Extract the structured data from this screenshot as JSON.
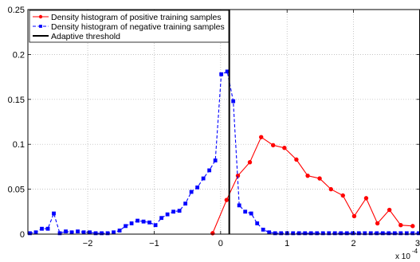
{
  "chart_data": {
    "type": "line",
    "title": "",
    "xlabel": "",
    "ylabel": "",
    "xlim": [
      -2.9,
      3.0
    ],
    "ylim": [
      0,
      0.25
    ],
    "x_multiplier_label": "x 10",
    "x_multiplier_exponent": "-4",
    "xticks": [
      -2,
      -1,
      0,
      1,
      2,
      3
    ],
    "xtick_labels": [
      "−2",
      "−1",
      "0",
      "1",
      "2",
      "3"
    ],
    "yticks": [
      0,
      0.05,
      0.1,
      0.15,
      0.2,
      0.25
    ],
    "ytick_labels": [
      "0",
      "0.05",
      "0.1",
      "0.15",
      "0.2",
      "0.25"
    ],
    "grid": true,
    "legend_position": "top-left",
    "threshold": {
      "name": "Adaptive threshold",
      "x": 0.13,
      "color": "#000000"
    },
    "series": [
      {
        "name": "Density histogram of positive training samples",
        "color": "#ff0000",
        "marker": "circle",
        "line": "solid",
        "x": [
          -0.12,
          0.09,
          0.26,
          0.44,
          0.61,
          0.79,
          0.96,
          1.14,
          1.31,
          1.49,
          1.66,
          1.84,
          2.01,
          2.19,
          2.36,
          2.54,
          2.71,
          2.89
        ],
        "values": [
          0.001,
          0.038,
          0.065,
          0.08,
          0.108,
          0.099,
          0.096,
          0.083,
          0.065,
          0.062,
          0.05,
          0.043,
          0.02,
          0.04,
          0.012,
          0.027,
          0.01,
          0.009
        ]
      },
      {
        "name": "Density histogram of negative training samples",
        "color": "#0000ff",
        "marker": "square",
        "line": "dashed",
        "x": [
          -2.87,
          -2.78,
          -2.69,
          -2.6,
          -2.51,
          -2.42,
          -2.33,
          -2.24,
          -2.15,
          -2.06,
          -1.97,
          -1.88,
          -1.79,
          -1.7,
          -1.61,
          -1.52,
          -1.43,
          -1.34,
          -1.25,
          -1.16,
          -1.07,
          -0.98,
          -0.89,
          -0.8,
          -0.71,
          -0.62,
          -0.53,
          -0.44,
          -0.35,
          -0.26,
          -0.17,
          -0.08,
          0.01,
          0.1,
          0.19,
          0.28,
          0.37,
          0.46,
          0.55,
          0.64,
          0.73,
          0.82,
          0.91,
          1.0,
          1.09,
          1.18,
          1.27,
          1.36,
          1.45,
          1.54,
          1.63,
          1.72,
          1.81,
          1.9,
          1.99,
          2.08,
          2.17,
          2.26,
          2.35,
          2.44,
          2.53,
          2.62,
          2.71,
          2.8,
          2.89,
          2.98
        ],
        "values": [
          0.001,
          0.002,
          0.006,
          0.006,
          0.023,
          0.001,
          0.003,
          0.002,
          0.003,
          0.002,
          0.002,
          0.001,
          0.001,
          0.001,
          0.002,
          0.004,
          0.009,
          0.012,
          0.015,
          0.014,
          0.013,
          0.01,
          0.018,
          0.022,
          0.025,
          0.026,
          0.034,
          0.047,
          0.052,
          0.062,
          0.071,
          0.082,
          0.178,
          0.181,
          0.148,
          0.032,
          0.025,
          0.023,
          0.012,
          0.005,
          0.002,
          0.001,
          0.001,
          0.001,
          0.001,
          0.001,
          0.001,
          0.001,
          0.001,
          0.001,
          0.001,
          0.001,
          0.001,
          0.001,
          0.001,
          0.001,
          0.001,
          0.001,
          0.001,
          0.001,
          0.001,
          0.001,
          0.001,
          0.001,
          0.001,
          0.001
        ]
      }
    ]
  }
}
